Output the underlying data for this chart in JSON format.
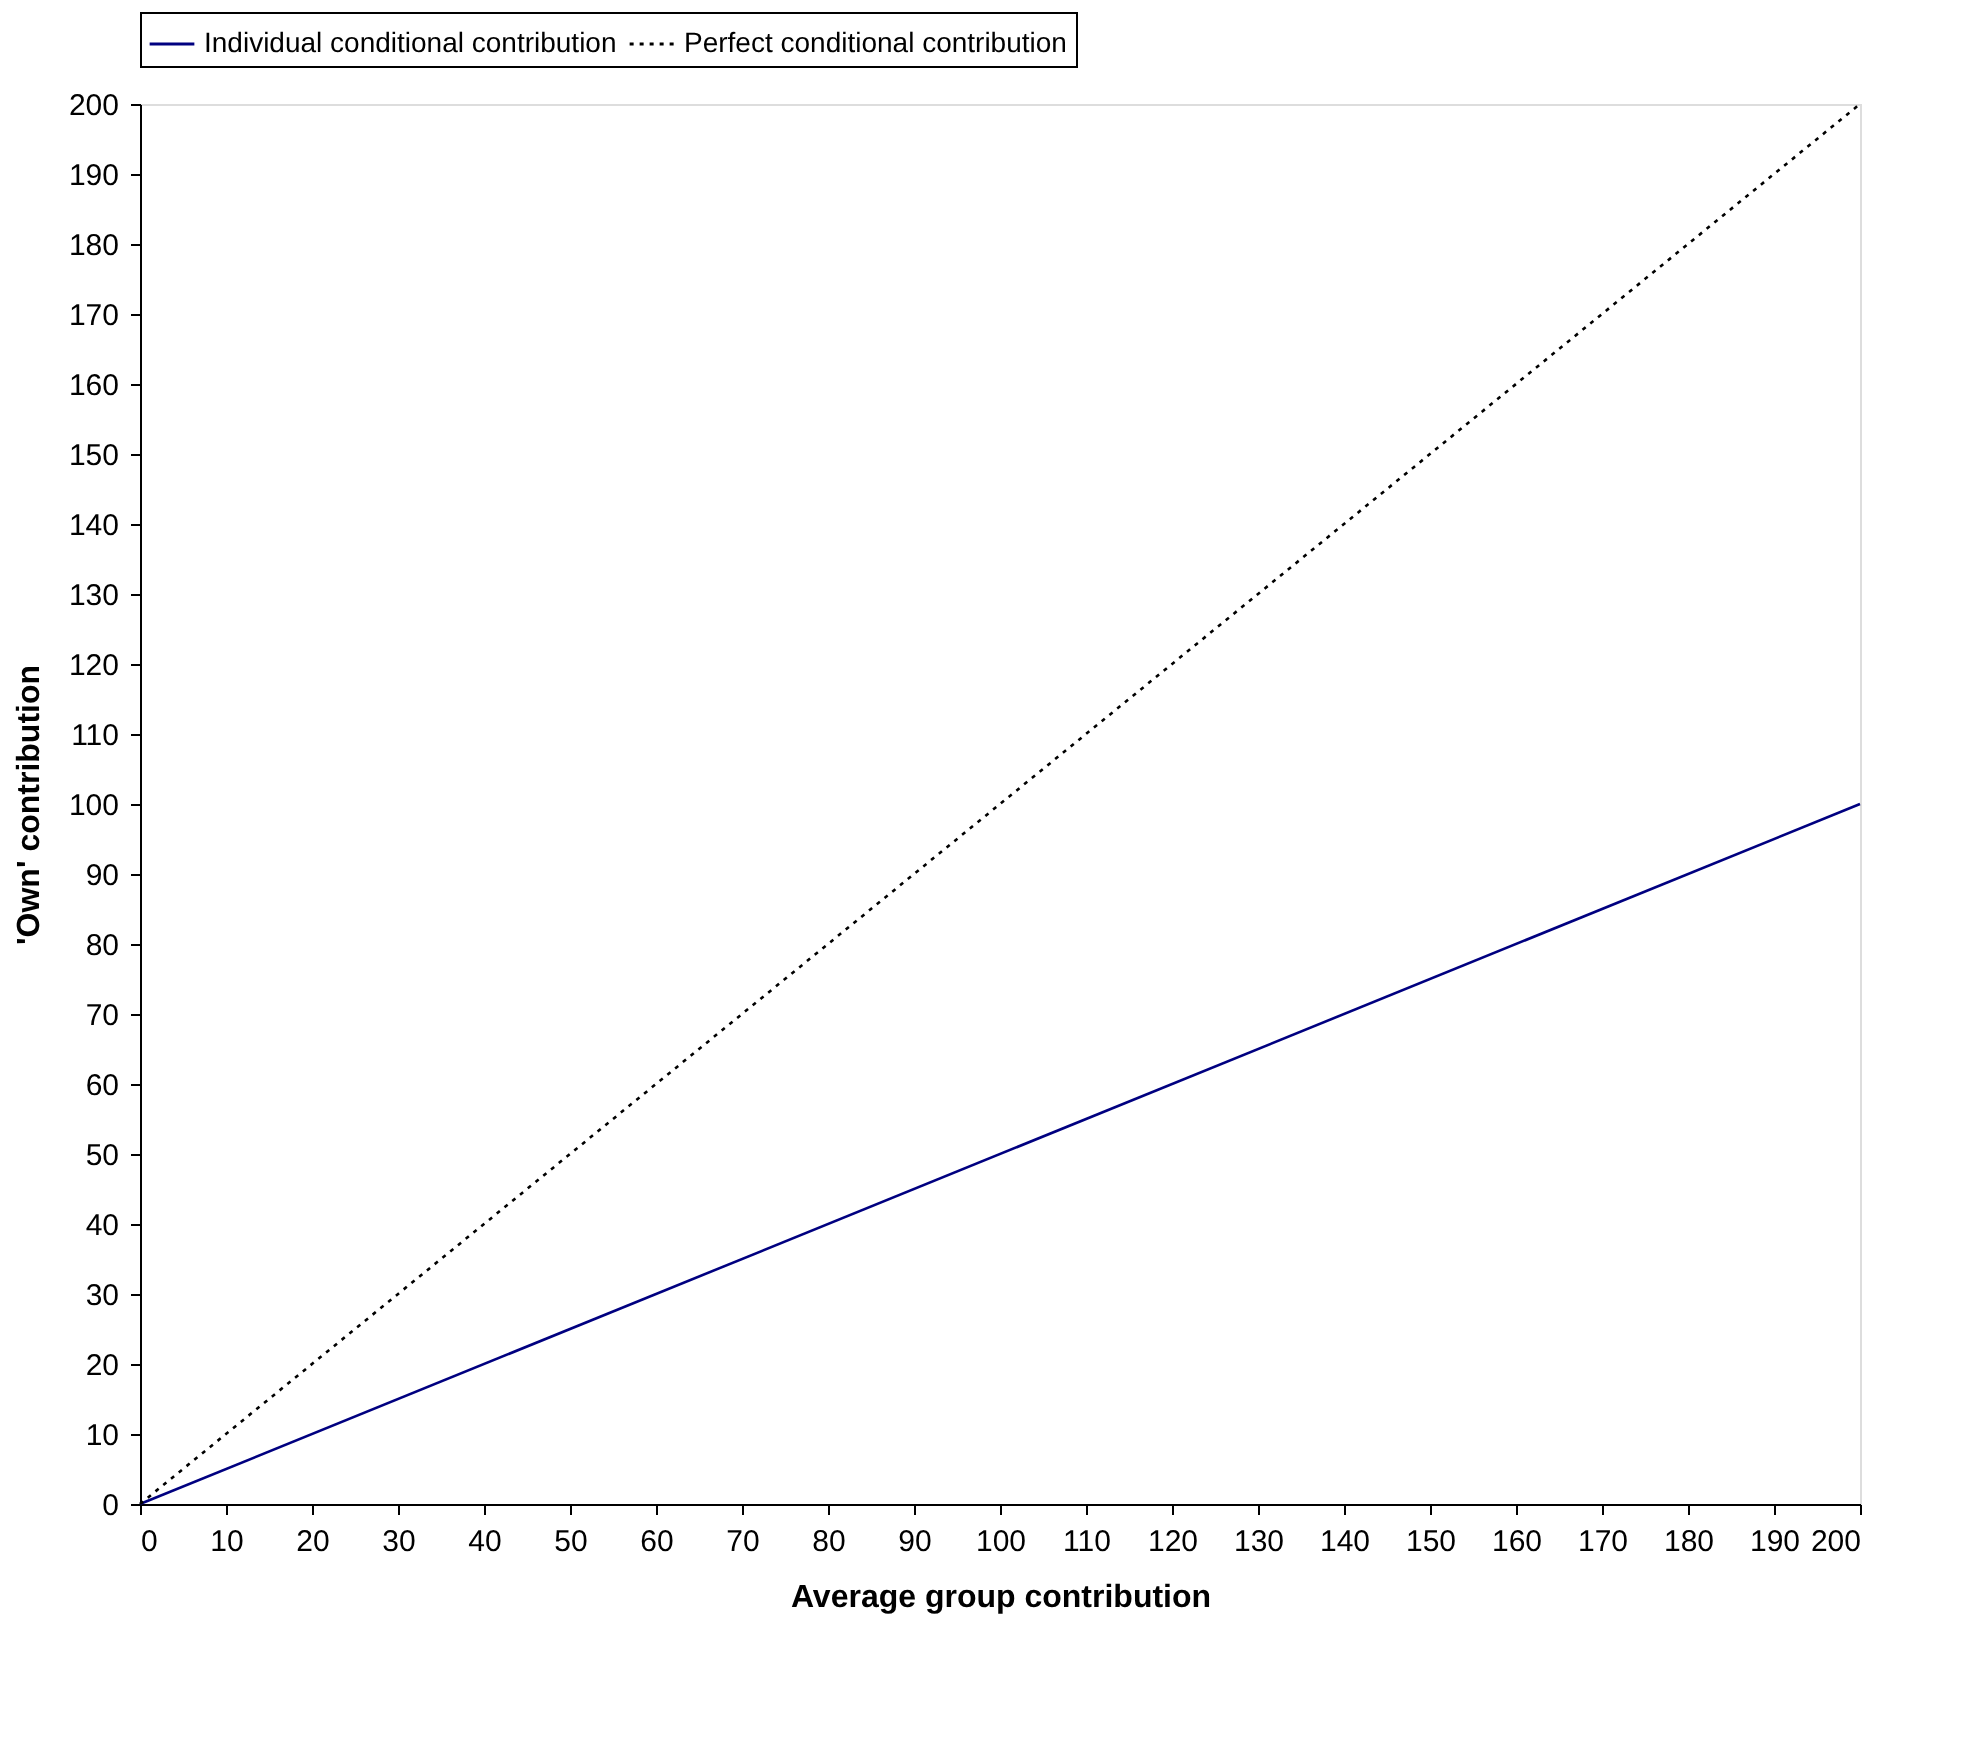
{
  "chart_data": {
    "type": "line",
    "xlabel": "Average group contribution",
    "ylabel": "'Own' contribution",
    "x": [
      0,
      200
    ],
    "series": [
      {
        "name": "Individual conditional contribution",
        "color": "#000080",
        "values": [
          0,
          100
        ],
        "line_style": "solid"
      },
      {
        "name": "Perfect conditional contribution",
        "color": "#000000",
        "values": [
          0,
          200
        ],
        "line_style": "dotted"
      }
    ],
    "xlim": [
      0,
      200
    ],
    "ylim": [
      0,
      200
    ],
    "xticks": [
      0,
      10,
      20,
      30,
      40,
      50,
      60,
      70,
      80,
      90,
      100,
      110,
      120,
      130,
      140,
      150,
      160,
      170,
      180,
      190,
      200
    ],
    "yticks": [
      0,
      10,
      20,
      30,
      40,
      50,
      60,
      70,
      80,
      90,
      100,
      110,
      120,
      130,
      140,
      150,
      160,
      170,
      180,
      190,
      200
    ],
    "grid": false,
    "legend": "top",
    "marker": "none"
  }
}
